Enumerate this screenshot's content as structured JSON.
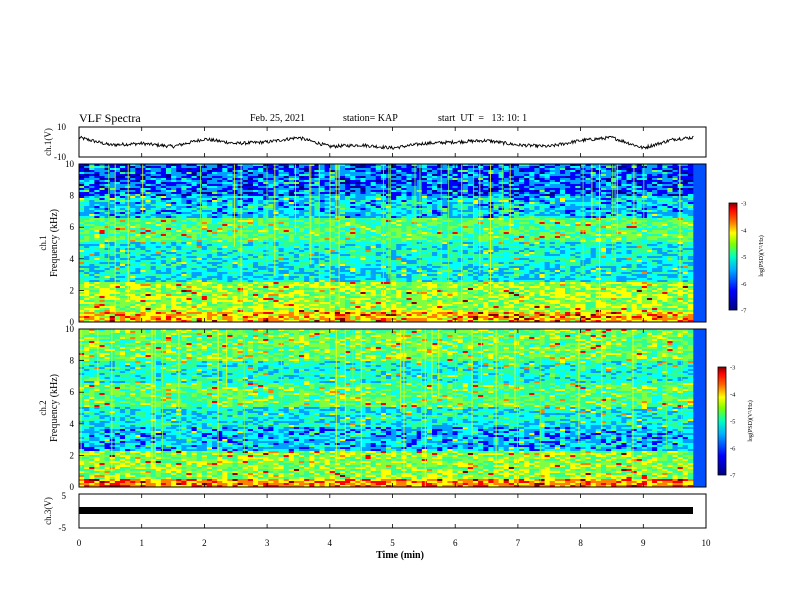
{
  "header": {
    "title": "VLF Spectra",
    "date": "Feb. 25, 2021",
    "station": "station= KAP",
    "start": "start  UT  =   13: 10: 1"
  },
  "colors": {
    "colormap": [
      "#00008f",
      "#0000ff",
      "#00a0ff",
      "#00ffff",
      "#30ff90",
      "#80ff40",
      "#ffff00",
      "#ff8000",
      "#ff0000",
      "#800000"
    ]
  },
  "chart_data": [
    {
      "type": "line",
      "panel": "ch1-waveform",
      "ylabel": "ch.1(V)",
      "ylim": [
        -10,
        10
      ],
      "yticks": [
        "10",
        "-10"
      ],
      "xlim": [
        0,
        10
      ],
      "description_series": "continuous waveform, values oscillating roughly between -6 and 7 V",
      "series": [
        {
          "x": [
            0,
            0.5,
            1,
            1.5,
            2,
            2.5,
            3,
            3.5,
            4,
            4.5,
            5,
            5.5,
            6,
            6.5,
            7,
            7.5,
            8,
            8.5,
            9,
            9.5,
            9.8
          ],
          "values": [
            3,
            -2,
            -1,
            -3,
            2,
            -1,
            0,
            3,
            -3,
            -2,
            -4,
            -1,
            0,
            1,
            -2,
            -3,
            1,
            3,
            -4,
            2,
            3
          ]
        }
      ]
    },
    {
      "type": "heatmap",
      "panel": "ch1-spectrogram",
      "ylabel_line1": "ch.1",
      "ylabel_line2": "Frequency (kHz)",
      "ylim": [
        0,
        10
      ],
      "yticks": [
        "0",
        "2",
        "4",
        "6",
        "8",
        "10"
      ],
      "xlim": [
        0,
        10
      ],
      "colorbar": {
        "label": "log(PSD)(V²/Hz)",
        "range": [
          -7,
          -3
        ],
        "ticks": [
          "-3",
          "-4",
          "-5",
          "-6",
          "-7"
        ]
      }
    },
    {
      "type": "heatmap",
      "panel": "ch2-spectrogram",
      "ylabel_line1": "ch.2",
      "ylabel_line2": "Frequency (kHz)",
      "ylim": [
        0,
        10
      ],
      "yticks": [
        "0",
        "2",
        "4",
        "6",
        "8",
        "10"
      ],
      "xlim": [
        0,
        10
      ],
      "colorbar": {
        "label": "log(PSD)(V²/Hz)",
        "range": [
          -7,
          -3
        ],
        "ticks": [
          "-3",
          "-4",
          "-5",
          "-6",
          "-7"
        ]
      }
    },
    {
      "type": "line",
      "panel": "ch3-waveform",
      "ylabel": "ch.3(V)",
      "ylim": [
        -5,
        5
      ],
      "yticks": [
        "5",
        "-5"
      ],
      "xlim": [
        0,
        10
      ],
      "series": [
        {
          "x": [
            0,
            9.8
          ],
          "values": [
            -0.5,
            -0.5
          ]
        }
      ]
    }
  ],
  "xaxis": {
    "label": "Time (min)",
    "ticks": [
      "0",
      "1",
      "2",
      "3",
      "4",
      "5",
      "6",
      "7",
      "8",
      "9",
      "10"
    ]
  }
}
